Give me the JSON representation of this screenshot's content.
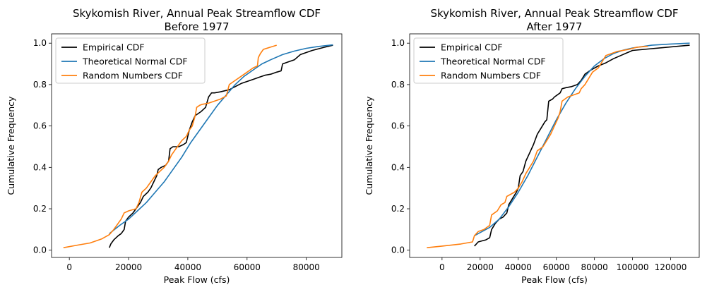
{
  "chart_data": [
    {
      "type": "line",
      "title_line1": "Skykomish River, Annual Peak Streamflow CDF",
      "title_line2": "Before 1977",
      "xlabel": "Peak Flow (cfs)",
      "ylabel": "Cumulative Frequency",
      "xlim": [
        -6000,
        92000
      ],
      "ylim": [
        -0.035,
        1.045
      ],
      "xticks": [
        0,
        20000,
        40000,
        60000,
        80000
      ],
      "yticks": [
        0.0,
        0.2,
        0.4,
        0.6,
        0.8,
        1.0
      ],
      "xtick_labels": [
        "0",
        "20000",
        "40000",
        "60000",
        "80000"
      ],
      "ytick_labels": [
        "0.0",
        "0.2",
        "0.4",
        "0.6",
        "0.8",
        "1.0"
      ],
      "legend_position": "top-left",
      "series": [
        {
          "name": "Empirical CDF",
          "color": "#000000",
          "x": [
            13500,
            14000,
            15000,
            16500,
            17500,
            18500,
            19000,
            20000,
            21500,
            22500,
            24000,
            25000,
            26500,
            27500,
            28500,
            29500,
            30000,
            31000,
            32500,
            33500,
            34000,
            35000,
            35500,
            37000,
            38500,
            39500,
            40500,
            41500,
            42500,
            43500,
            44500,
            46000,
            47000,
            47500,
            48000,
            49000,
            51000,
            52500,
            54000,
            56000,
            58000,
            60000,
            62000,
            64000,
            66000,
            68000,
            70000,
            71500,
            72000,
            74000,
            76000,
            78000,
            82000,
            86000,
            89000
          ],
          "y": [
            0.012,
            0.03,
            0.05,
            0.07,
            0.08,
            0.1,
            0.14,
            0.16,
            0.18,
            0.2,
            0.23,
            0.26,
            0.28,
            0.3,
            0.33,
            0.36,
            0.39,
            0.4,
            0.41,
            0.43,
            0.49,
            0.5,
            0.5,
            0.5,
            0.51,
            0.52,
            0.58,
            0.62,
            0.65,
            0.66,
            0.67,
            0.69,
            0.74,
            0.75,
            0.76,
            0.76,
            0.765,
            0.77,
            0.775,
            0.79,
            0.805,
            0.815,
            0.825,
            0.835,
            0.845,
            0.85,
            0.86,
            0.866,
            0.9,
            0.91,
            0.92,
            0.945,
            0.965,
            0.98,
            0.99
          ]
        },
        {
          "name": "Theoretical Normal CDF",
          "color": "#1f77b4",
          "x": [
            13500,
            17000,
            20000,
            23000,
            26000,
            29000,
            32000,
            35000,
            38000,
            41000,
            44000,
            47000,
            50000,
            53000,
            56000,
            59000,
            62000,
            65000,
            68000,
            72000,
            76000,
            80000,
            84000,
            89000
          ],
          "y": [
            0.08,
            0.12,
            0.15,
            0.19,
            0.23,
            0.28,
            0.33,
            0.39,
            0.45,
            0.52,
            0.58,
            0.64,
            0.7,
            0.75,
            0.8,
            0.84,
            0.87,
            0.9,
            0.92,
            0.945,
            0.962,
            0.975,
            0.984,
            0.992
          ]
        },
        {
          "name": "Random Numbers CDF",
          "color": "#ff7f0e",
          "x": [
            -2000,
            3000,
            7000,
            11000,
            13500,
            15000,
            16000,
            17500,
            18500,
            20000,
            22500,
            23500,
            24500,
            26000,
            27500,
            29000,
            30500,
            32000,
            33500,
            34500,
            35500,
            37000,
            38000,
            39500,
            40500,
            41500,
            42500,
            43000,
            44000,
            45000,
            47000,
            49000,
            51000,
            53000,
            54000,
            56000,
            58000,
            60000,
            62000,
            63500,
            63800,
            64500,
            65500,
            70000
          ],
          "y": [
            0.012,
            0.025,
            0.035,
            0.055,
            0.075,
            0.1,
            0.12,
            0.15,
            0.18,
            0.19,
            0.2,
            0.23,
            0.28,
            0.3,
            0.33,
            0.36,
            0.38,
            0.4,
            0.43,
            0.46,
            0.48,
            0.51,
            0.53,
            0.55,
            0.58,
            0.6,
            0.65,
            0.69,
            0.7,
            0.705,
            0.71,
            0.72,
            0.73,
            0.745,
            0.8,
            0.82,
            0.84,
            0.86,
            0.88,
            0.89,
            0.93,
            0.95,
            0.97,
            0.99
          ]
        }
      ]
    },
    {
      "type": "line",
      "title_line1": "Skykomish River, Annual Peak Streamflow CDF",
      "title_line2": "After 1977",
      "xlabel": "Peak Flow (cfs)",
      "ylabel": "Cumulative Frequency",
      "xlim": [
        -17000,
        135000
      ],
      "ylim": [
        -0.035,
        1.045
      ],
      "xticks": [
        0,
        20000,
        40000,
        60000,
        80000,
        100000,
        120000
      ],
      "yticks": [
        0.0,
        0.2,
        0.4,
        0.6,
        0.8,
        1.0
      ],
      "xtick_labels": [
        "0",
        "20000",
        "40000",
        "60000",
        "80000",
        "100000",
        "120000"
      ],
      "ytick_labels": [
        "0.0",
        "0.2",
        "0.4",
        "0.6",
        "0.8",
        "1.0"
      ],
      "legend_position": "top-left",
      "series": [
        {
          "name": "Empirical CDF",
          "color": "#000000",
          "x": [
            17000,
            19000,
            21000,
            23000,
            25000,
            26000,
            28000,
            30000,
            32000,
            34000,
            35000,
            37000,
            39000,
            40000,
            41000,
            42500,
            44000,
            46000,
            48000,
            50000,
            52000,
            54000,
            55000,
            56000,
            58000,
            59000,
            62000,
            63000,
            65000,
            68000,
            71000,
            73000,
            75000,
            78000,
            82000,
            86000,
            90000,
            100000,
            130000
          ],
          "y": [
            0.02,
            0.04,
            0.045,
            0.05,
            0.06,
            0.1,
            0.13,
            0.15,
            0.16,
            0.18,
            0.22,
            0.25,
            0.28,
            0.3,
            0.36,
            0.38,
            0.43,
            0.47,
            0.51,
            0.56,
            0.59,
            0.62,
            0.63,
            0.72,
            0.73,
            0.74,
            0.76,
            0.78,
            0.785,
            0.79,
            0.8,
            0.82,
            0.85,
            0.87,
            0.89,
            0.905,
            0.925,
            0.965,
            0.99
          ]
        },
        {
          "name": "Theoretical Normal CDF",
          "color": "#1f77b4",
          "x": [
            17000,
            25000,
            30000,
            35000,
            40000,
            45000,
            50000,
            55000,
            60000,
            65000,
            70000,
            75000,
            80000,
            85000,
            90000,
            95000,
            100000,
            110000,
            120000,
            130000
          ],
          "y": [
            0.07,
            0.11,
            0.15,
            0.21,
            0.28,
            0.36,
            0.45,
            0.54,
            0.63,
            0.71,
            0.78,
            0.84,
            0.89,
            0.925,
            0.95,
            0.966,
            0.977,
            0.99,
            0.996,
            1.0
          ]
        },
        {
          "name": "Random Numbers CDF",
          "color": "#ff7f0e",
          "x": [
            -8000,
            0,
            10000,
            16000,
            17000,
            19000,
            22000,
            25000,
            26000,
            29000,
            31000,
            33000,
            34000,
            36000,
            38000,
            40000,
            42000,
            44000,
            46000,
            48000,
            50000,
            53000,
            55000,
            57000,
            59000,
            61000,
            62000,
            63000,
            66000,
            69000,
            72000,
            73000,
            75000,
            77000,
            79000,
            82000,
            86000,
            92000,
            98000,
            102000,
            108000
          ],
          "y": [
            0.012,
            0.02,
            0.03,
            0.04,
            0.07,
            0.09,
            0.1,
            0.12,
            0.17,
            0.19,
            0.22,
            0.23,
            0.26,
            0.27,
            0.28,
            0.3,
            0.33,
            0.37,
            0.4,
            0.43,
            0.48,
            0.5,
            0.53,
            0.56,
            0.6,
            0.64,
            0.67,
            0.72,
            0.74,
            0.75,
            0.76,
            0.78,
            0.8,
            0.83,
            0.86,
            0.88,
            0.94,
            0.96,
            0.97,
            0.98,
            0.985
          ]
        }
      ]
    }
  ]
}
